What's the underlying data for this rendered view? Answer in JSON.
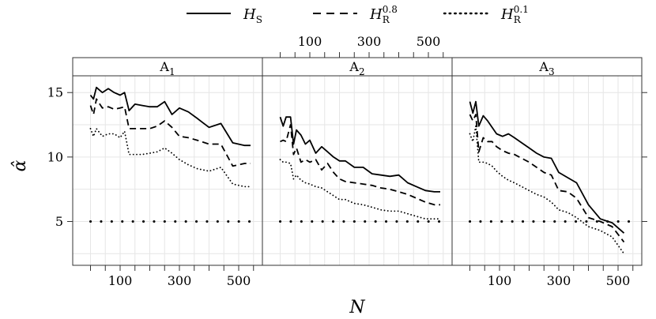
{
  "chart_data": {
    "type": "line",
    "title": "",
    "xlabel": "N",
    "ylabel": "α̂",
    "x_ticks": [
      100,
      300,
      500
    ],
    "y_ticks": [
      5,
      10,
      15
    ],
    "xlim": [
      -60,
      580
    ],
    "ylim": [
      1.6,
      16.3
    ],
    "legend": {
      "position": "top",
      "entries": [
        {
          "label": "H",
          "sub": "S",
          "sup": "",
          "style": "solid"
        },
        {
          "label": "H",
          "sub": "R",
          "sup": "0.8",
          "style": "dashed"
        },
        {
          "label": "H",
          "sub": "R",
          "sup": "0.1",
          "style": "dotted"
        }
      ]
    },
    "reference_line": {
      "y": 5,
      "style": "dotted"
    },
    "panels": [
      {
        "label": "A",
        "sub": "1",
        "series": [
          {
            "name": "H_S",
            "style": "solid",
            "x": [
              0,
              10,
              20,
              40,
              60,
              80,
              100,
              115,
              130,
              150,
              175,
              200,
              225,
              250,
              275,
              300,
              330,
              360,
              400,
              440,
              480,
              520,
              540
            ],
            "y": [
              14.8,
              14.5,
              15.4,
              15.0,
              15.3,
              15.0,
              14.8,
              15.0,
              13.6,
              14.1,
              14.0,
              13.9,
              13.9,
              14.3,
              13.3,
              13.8,
              13.5,
              13.0,
              12.3,
              12.6,
              11.1,
              10.9,
              10.9
            ]
          },
          {
            "name": "H_R^0.8",
            "style": "dashed",
            "x": [
              0,
              10,
              20,
              40,
              60,
              80,
              100,
              115,
              130,
              150,
              175,
              200,
              225,
              250,
              275,
              300,
              330,
              360,
              400,
              440,
              480,
              520,
              540
            ],
            "y": [
              14.0,
              13.3,
              14.5,
              13.8,
              13.9,
              13.7,
              13.8,
              13.9,
              12.2,
              12.2,
              12.2,
              12.2,
              12.4,
              12.8,
              12.3,
              11.6,
              11.5,
              11.3,
              11.0,
              11.0,
              9.3,
              9.5,
              9.5
            ]
          },
          {
            "name": "H_R^0.1",
            "style": "dotted",
            "x": [
              0,
              10,
              20,
              40,
              60,
              80,
              100,
              115,
              130,
              150,
              175,
              200,
              225,
              250,
              275,
              300,
              330,
              360,
              400,
              440,
              480,
              520,
              540
            ],
            "y": [
              12.2,
              11.6,
              12.2,
              11.6,
              11.8,
              11.8,
              11.5,
              12.0,
              10.2,
              10.2,
              10.2,
              10.3,
              10.4,
              10.7,
              10.3,
              9.8,
              9.4,
              9.1,
              8.9,
              9.2,
              7.9,
              7.7,
              7.7
            ]
          },
          {
            "name": "reference 5",
            "style": "dotted",
            "x": [
              0,
              540
            ],
            "y": [
              5,
              5
            ]
          }
        ]
      },
      {
        "label": "A",
        "sub": "2",
        "series": [
          {
            "name": "H_S",
            "style": "solid",
            "x": [
              0,
              10,
              20,
              35,
              45,
              55,
              70,
              85,
              100,
              120,
              140,
              160,
              180,
              200,
              220,
              250,
              280,
              310,
              340,
              370,
              400,
              430,
              460,
              490,
              520,
              540
            ],
            "y": [
              13.1,
              12.4,
              13.1,
              13.1,
              11.0,
              12.1,
              11.7,
              11.0,
              11.3,
              10.3,
              10.8,
              10.4,
              10.0,
              9.7,
              9.7,
              9.2,
              9.2,
              8.7,
              8.6,
              8.5,
              8.6,
              8.0,
              7.7,
              7.4,
              7.3,
              7.3
            ]
          },
          {
            "name": "H_R^0.8",
            "style": "dashed",
            "x": [
              0,
              10,
              20,
              35,
              45,
              55,
              70,
              85,
              100,
              120,
              140,
              160,
              180,
              200,
              220,
              250,
              280,
              310,
              340,
              370,
              400,
              430,
              460,
              490,
              520,
              540
            ],
            "y": [
              11.2,
              11.3,
              11.2,
              12.5,
              10.2,
              10.7,
              9.6,
              9.8,
              9.6,
              9.8,
              9.0,
              9.5,
              8.8,
              8.3,
              8.1,
              8.0,
              7.9,
              7.8,
              7.6,
              7.5,
              7.3,
              7.1,
              6.8,
              6.5,
              6.3,
              6.3
            ]
          },
          {
            "name": "H_R^0.1",
            "style": "dotted",
            "x": [
              0,
              10,
              20,
              35,
              45,
              55,
              70,
              85,
              100,
              120,
              140,
              160,
              180,
              200,
              220,
              250,
              280,
              310,
              340,
              370,
              400,
              430,
              460,
              490,
              520,
              540
            ],
            "y": [
              9.8,
              9.6,
              9.6,
              9.5,
              8.3,
              8.6,
              8.2,
              8.0,
              7.9,
              7.7,
              7.6,
              7.3,
              7.0,
              6.7,
              6.7,
              6.4,
              6.3,
              6.1,
              5.9,
              5.8,
              5.8,
              5.6,
              5.4,
              5.2,
              5.2,
              5.2
            ]
          },
          {
            "name": "reference 5",
            "style": "dotted",
            "x": [
              0,
              540
            ],
            "y": [
              5,
              5
            ]
          }
        ]
      },
      {
        "label": "A",
        "sub": "3",
        "series": [
          {
            "name": "H_S",
            "style": "solid",
            "x": [
              0,
              10,
              20,
              30,
              45,
              60,
              75,
              90,
              110,
              130,
              150,
              175,
              200,
              225,
              250,
              275,
              300,
              330,
              360,
              400,
              440,
              480,
              520
            ],
            "y": [
              14.3,
              13.4,
              14.3,
              12.4,
              13.2,
              12.8,
              12.3,
              11.8,
              11.6,
              11.8,
              11.5,
              11.1,
              10.7,
              10.3,
              10.0,
              9.9,
              8.8,
              8.4,
              8.0,
              6.3,
              5.2,
              4.9,
              4.1
            ]
          },
          {
            "name": "H_R^0.8",
            "style": "dashed",
            "x": [
              0,
              10,
              20,
              30,
              45,
              60,
              75,
              90,
              110,
              130,
              150,
              175,
              200,
              225,
              250,
              275,
              300,
              330,
              360,
              400,
              440,
              480,
              520
            ],
            "y": [
              13.3,
              12.8,
              13.3,
              10.4,
              11.5,
              11.2,
              11.2,
              10.8,
              10.5,
              10.3,
              10.2,
              9.9,
              9.6,
              9.2,
              8.8,
              8.6,
              7.4,
              7.3,
              6.8,
              5.3,
              5.0,
              4.6,
              3.4
            ]
          },
          {
            "name": "H_R^0.1",
            "style": "dotted",
            "x": [
              0,
              10,
              20,
              30,
              45,
              60,
              75,
              90,
              110,
              130,
              150,
              175,
              200,
              225,
              250,
              275,
              300,
              330,
              360,
              400,
              440,
              480,
              520
            ],
            "y": [
              11.8,
              11.2,
              12.4,
              9.6,
              9.6,
              9.5,
              9.3,
              8.9,
              8.5,
              8.2,
              8.0,
              7.7,
              7.4,
              7.1,
              6.9,
              6.5,
              5.9,
              5.7,
              5.3,
              4.6,
              4.3,
              3.8,
              2.5
            ]
          },
          {
            "name": "reference 5",
            "style": "dotted",
            "x": [
              0,
              540
            ],
            "y": [
              5,
              5
            ]
          }
        ]
      }
    ]
  }
}
